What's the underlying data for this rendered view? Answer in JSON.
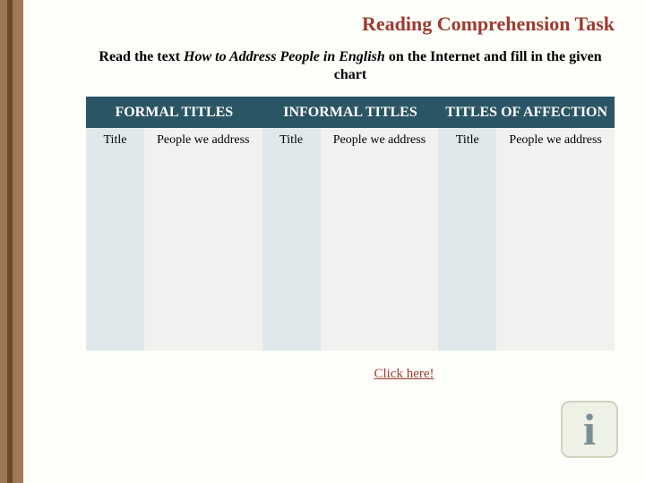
{
  "colors": {
    "title": "#9e3b2f",
    "header_bg": "#2a5564",
    "subhead_bg": "#f1f1f0",
    "body_even": "#dfe9eb",
    "body_odd": "#f1f1f0",
    "link": "#9e3b2f",
    "info_bg": "#eef1e6",
    "info_border": "#cdd3bd",
    "info_fg": "#7b9096"
  },
  "title": "Reading Comprehension Task",
  "instruction_pre": "Read the text ",
  "instruction_italic": "How to Address People in English",
  "instruction_post": " on the Internet and fill in the given chart",
  "table": {
    "group_headers": [
      "FORMAL TITLES",
      "INFORMAL TITLES",
      "TITLES OF AFFECTION"
    ],
    "sub_headers": [
      "Title",
      "People we address",
      "Title",
      "People we address",
      "Title",
      "People we address"
    ],
    "col_widths_pct": [
      11,
      22.3,
      11,
      22.3,
      11,
      22.3
    ]
  },
  "link_text": "Click here!"
}
